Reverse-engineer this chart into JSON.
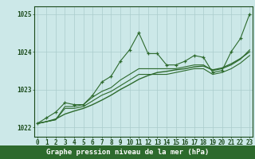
{
  "title": "Graphe pression niveau de la mer (hPa)",
  "xlabel_hours": [
    0,
    1,
    2,
    3,
    4,
    5,
    6,
    7,
    8,
    9,
    10,
    11,
    12,
    13,
    14,
    15,
    16,
    17,
    18,
    19,
    20,
    21,
    22,
    23
  ],
  "series": [
    {
      "label": "line_main",
      "color": "#2d6a2d",
      "linewidth": 0.8,
      "marker": "+",
      "markersize": 3.5,
      "markeredgewidth": 0.9,
      "values": [
        1022.1,
        1022.25,
        1022.4,
        1022.65,
        1022.6,
        1022.6,
        1022.85,
        1023.2,
        1023.35,
        1023.75,
        1024.05,
        1024.5,
        1023.95,
        1023.95,
        1023.65,
        1023.65,
        1023.75,
        1023.9,
        1023.85,
        1023.45,
        1023.5,
        1024.0,
        1024.35,
        1025.0
      ]
    },
    {
      "label": "line_trend1",
      "color": "#2d6a2d",
      "linewidth": 0.8,
      "marker": "None",
      "markersize": 0,
      "markeredgewidth": 0,
      "values": [
        1022.1,
        1022.15,
        1022.2,
        1022.55,
        1022.55,
        1022.6,
        1022.8,
        1022.95,
        1023.05,
        1023.25,
        1023.4,
        1023.55,
        1023.55,
        1023.55,
        1023.55,
        1023.55,
        1023.6,
        1023.65,
        1023.65,
        1023.5,
        1023.55,
        1023.65,
        1023.8,
        1024.05
      ]
    },
    {
      "label": "line_trend2",
      "color": "#2d6a2d",
      "linewidth": 0.8,
      "marker": "None",
      "markersize": 0,
      "markeredgewidth": 0,
      "values": [
        1022.1,
        1022.15,
        1022.2,
        1022.5,
        1022.5,
        1022.55,
        1022.7,
        1022.85,
        1022.95,
        1023.1,
        1023.25,
        1023.4,
        1023.4,
        1023.4,
        1023.4,
        1023.45,
        1023.5,
        1023.55,
        1023.55,
        1023.4,
        1023.45,
        1023.55,
        1023.7,
        1023.9
      ]
    },
    {
      "label": "line_diagonal",
      "color": "#2d6a2d",
      "linewidth": 1.0,
      "marker": "None",
      "markersize": 0,
      "markeredgewidth": 0,
      "values": [
        1022.1,
        1022.15,
        1022.22,
        1022.35,
        1022.43,
        1022.5,
        1022.6,
        1022.72,
        1022.85,
        1023.0,
        1023.13,
        1023.27,
        1023.37,
        1023.45,
        1023.48,
        1023.52,
        1023.55,
        1023.6,
        1023.62,
        1023.52,
        1023.57,
        1023.68,
        1023.82,
        1024.0
      ]
    }
  ],
  "ylim": [
    1021.75,
    1025.2
  ],
  "yticks": [
    1022,
    1023,
    1024,
    1025
  ],
  "xlim": [
    -0.3,
    23.3
  ],
  "bg_color": "#cce8e8",
  "grid_color": "#aacccc",
  "text_color": "#1a4a1a",
  "title_fontsize": 6.5,
  "tick_fontsize": 5.5,
  "bottom_bar_color": "#2d6a2d"
}
